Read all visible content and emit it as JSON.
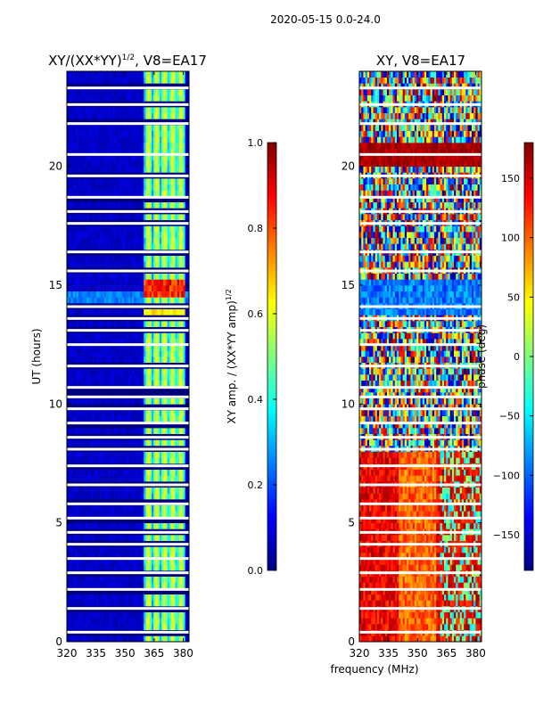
{
  "figure": {
    "suptitle": "2020-05-15 0.0-24.0",
    "shared_xlabel": "frequency (MHz)"
  },
  "colormap": [
    "#00007f",
    "#0000ff",
    "#007fff",
    "#00ffff",
    "#7fff7f",
    "#ffff00",
    "#ff7f00",
    "#ff0000",
    "#7f0000"
  ],
  "chart_data": [
    {
      "type": "heatmap",
      "title_main": "XY/(XX*YY)",
      "title_sup": "1/2",
      "title_tail": ", V8=EA17",
      "xlabel": "",
      "ylabel": "UT (hours)",
      "xlim": [
        320,
        383
      ],
      "ylim": [
        0,
        24
      ],
      "xticks": [
        320,
        335,
        350,
        365,
        380
      ],
      "yticks": [
        0,
        5,
        10,
        15,
        20
      ],
      "colorbar": {
        "label_main": "XY amp. / (XX*YY amp)",
        "label_sup": "1/2",
        "range": [
          0.0,
          1.0
        ],
        "ticks": [
          0.0,
          0.2,
          0.4,
          0.6,
          0.8,
          1.0
        ],
        "tick_labels": [
          "0.0",
          "0.2",
          "0.4",
          "0.6",
          "0.8",
          "1.0"
        ]
      },
      "description": "normalized amplitude; low (~0.05) below 360 MHz, bright channel columns 360-380 MHz, strong band near UT 15"
    },
    {
      "type": "heatmap",
      "title_main": "XY, V8=EA17",
      "xlabel": "frequency (MHz)",
      "ylabel": "",
      "xlim": [
        320,
        383
      ],
      "ylim": [
        0,
        24
      ],
      "xticks": [
        320,
        335,
        350,
        365,
        380
      ],
      "yticks": [
        0,
        5,
        10,
        15,
        20
      ],
      "colorbar": {
        "label_main": "phase (deg)",
        "range": [
          -180,
          180
        ],
        "ticks": [
          -150,
          -100,
          -50,
          0,
          50,
          100,
          150
        ],
        "tick_labels": [
          "−150",
          "−100",
          "−50",
          "0",
          "50",
          "100",
          "150"
        ]
      },
      "description": "XY phase; mostly 90-180 deg at UT 0-8, mixed phases above"
    }
  ]
}
